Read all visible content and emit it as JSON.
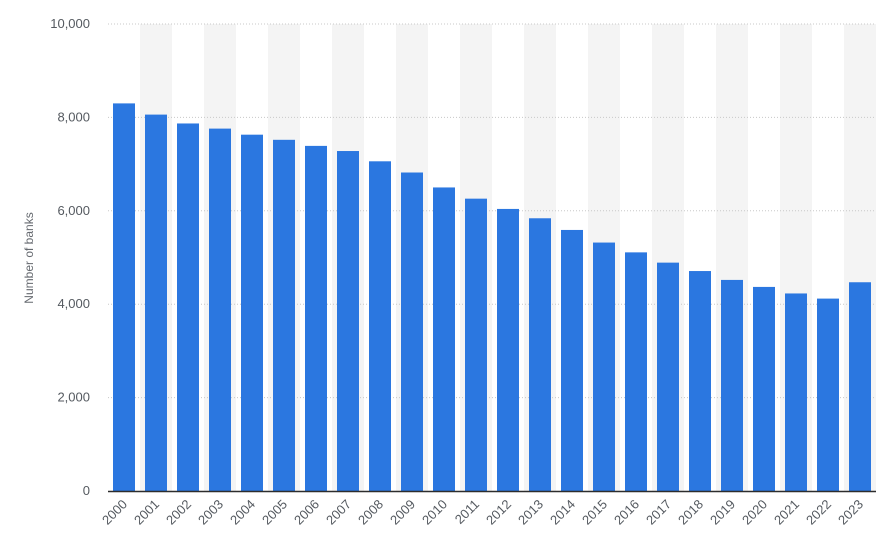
{
  "chart_data": {
    "type": "bar",
    "title": "",
    "xlabel": "",
    "ylabel": "Number of banks",
    "ylim": [
      0,
      10000
    ],
    "yticks": [
      0,
      2000,
      4000,
      6000,
      8000,
      10000
    ],
    "ytick_labels": [
      "0",
      "2,000",
      "4,000",
      "6,000",
      "8,000",
      "10,000"
    ],
    "grid": "horizontal dotted",
    "legend": "none",
    "categories": [
      "2000",
      "2001",
      "2002",
      "2003",
      "2004",
      "2005",
      "2006",
      "2007",
      "2008",
      "2009",
      "2010",
      "2011",
      "2012",
      "2013",
      "2014",
      "2015",
      "2016",
      "2017",
      "2018",
      "2019",
      "2020",
      "2021",
      "2022",
      "2023"
    ],
    "values": [
      8300,
      8060,
      7870,
      7760,
      7630,
      7520,
      7390,
      7280,
      7060,
      6820,
      6500,
      6260,
      6040,
      5840,
      5590,
      5320,
      5110,
      4890,
      4710,
      4520,
      4370,
      4230,
      4120,
      4470
    ],
    "colors": {
      "bar": "#2b77e0",
      "band": "#f4f4f4",
      "axis": "#2d2d2d",
      "grid": "#c8c8c8"
    }
  }
}
